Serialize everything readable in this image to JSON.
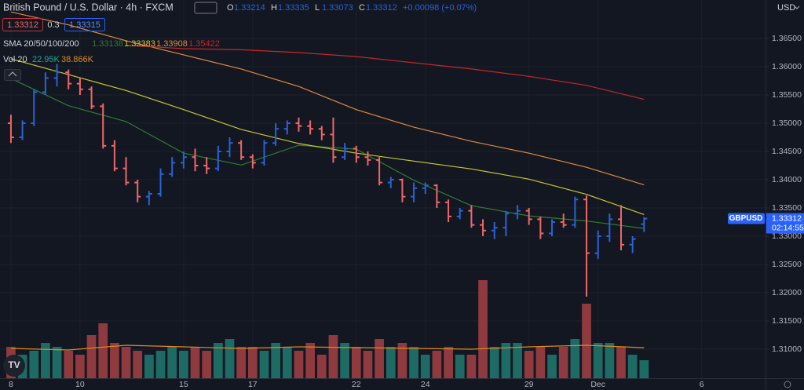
{
  "header": {
    "title": "British Pound / U.S. Dollar · 4h · FXCM",
    "sell": "1.33312",
    "spread": "0.3",
    "buy": "1.33315",
    "change": "+0.00098 (+0.07%)",
    "ohlc_letters": [
      "O",
      "H",
      "L",
      "C"
    ],
    "countdown": "02:14:55",
    "currency": "USD"
  },
  "chart_data": {
    "type": "ohlc",
    "symbol": "GBPUSD",
    "up_color": "#2a62d6",
    "down_color": "#f06767",
    "x": [
      0,
      1,
      2,
      3,
      4,
      5,
      6,
      7,
      8,
      9,
      10,
      11,
      12,
      13,
      14,
      15,
      16,
      17,
      18,
      19,
      20,
      21,
      22,
      23,
      24,
      25,
      26,
      27,
      28,
      29,
      30,
      31,
      32,
      33,
      34,
      35,
      36,
      37,
      38,
      39,
      40,
      41,
      42,
      43,
      44,
      45,
      46,
      47,
      48,
      49,
      50,
      51,
      52,
      53,
      54,
      55
    ],
    "open": [
      1.35,
      1.3475,
      1.35,
      1.3555,
      1.358,
      1.359,
      1.357,
      1.356,
      1.353,
      1.346,
      1.342,
      1.3395,
      1.337,
      1.3375,
      1.341,
      1.343,
      1.344,
      1.3425,
      1.342,
      1.345,
      1.3465,
      1.344,
      1.343,
      1.3465,
      1.349,
      1.35,
      1.3495,
      1.349,
      1.348,
      1.344,
      1.3455,
      1.344,
      1.3435,
      1.3395,
      1.34,
      1.337,
      1.3385,
      1.339,
      1.336,
      1.3335,
      1.3345,
      1.332,
      1.331,
      1.3315,
      1.334,
      1.3345,
      1.333,
      1.3305,
      1.3325,
      1.332,
      1.3365,
      1.327,
      1.33,
      1.333,
      1.3285,
      1.33214
    ],
    "high": [
      1.3515,
      1.3505,
      1.356,
      1.359,
      1.3605,
      1.3595,
      1.358,
      1.3565,
      1.3535,
      1.347,
      1.344,
      1.34,
      1.338,
      1.342,
      1.344,
      1.345,
      1.3455,
      1.344,
      1.346,
      1.3475,
      1.347,
      1.3445,
      1.347,
      1.35,
      1.3505,
      1.351,
      1.3505,
      1.3495,
      1.351,
      1.3465,
      1.346,
      1.345,
      1.344,
      1.3405,
      1.3402,
      1.3395,
      1.3395,
      1.3392,
      1.3365,
      1.335,
      1.3355,
      1.333,
      1.3325,
      1.3345,
      1.3355,
      1.335,
      1.3335,
      1.333,
      1.334,
      1.337,
      1.3372,
      1.331,
      1.334,
      1.3355,
      1.33,
      1.33335
    ],
    "low": [
      1.3465,
      1.347,
      1.3495,
      1.355,
      1.3565,
      1.356,
      1.355,
      1.3525,
      1.3455,
      1.3415,
      1.339,
      1.336,
      1.3355,
      1.337,
      1.3405,
      1.342,
      1.3415,
      1.341,
      1.3415,
      1.344,
      1.3435,
      1.342,
      1.3425,
      1.346,
      1.348,
      1.3485,
      1.348,
      1.347,
      1.343,
      1.3435,
      1.343,
      1.3425,
      1.339,
      1.3385,
      1.336,
      1.336,
      1.3375,
      1.335,
      1.3325,
      1.333,
      1.3315,
      1.33,
      1.3295,
      1.33,
      1.333,
      1.332,
      1.3295,
      1.33,
      1.3315,
      1.3315,
      1.3193,
      1.326,
      1.329,
      1.3275,
      1.327,
      1.33073
    ],
    "close": [
      1.3475,
      1.35,
      1.3555,
      1.358,
      1.359,
      1.357,
      1.356,
      1.353,
      1.346,
      1.342,
      1.3395,
      1.337,
      1.3375,
      1.341,
      1.343,
      1.344,
      1.3425,
      1.342,
      1.345,
      1.3465,
      1.344,
      1.343,
      1.3465,
      1.349,
      1.35,
      1.3495,
      1.349,
      1.348,
      1.344,
      1.3455,
      1.344,
      1.3435,
      1.3395,
      1.34,
      1.337,
      1.3385,
      1.339,
      1.336,
      1.3335,
      1.3345,
      1.332,
      1.331,
      1.3315,
      1.334,
      1.3345,
      1.333,
      1.3305,
      1.3325,
      1.332,
      1.3365,
      1.327,
      1.33,
      1.333,
      1.3285,
      1.3295,
      1.33312
    ],
    "xlim": [
      -0.95,
      65.55
    ],
    "xticks": [
      {
        "value": 0,
        "label": "8"
      },
      {
        "value": 6,
        "label": "10"
      },
      {
        "value": 15,
        "label": "15"
      },
      {
        "value": 21,
        "label": "17"
      },
      {
        "value": 30,
        "label": "22"
      },
      {
        "value": 36,
        "label": "24"
      },
      {
        "value": 45,
        "label": "29"
      },
      {
        "value": 51,
        "label": "Dec"
      },
      {
        "value": 60,
        "label": "6"
      }
    ],
    "ylim": [
      1.30486,
      1.37181
    ],
    "yticks": [
      {
        "value": 1.31,
        "label": "1.31000"
      },
      {
        "value": 1.315,
        "label": "1.31500"
      },
      {
        "value": 1.32,
        "label": "1.32000"
      },
      {
        "value": 1.325,
        "label": "1.32500"
      },
      {
        "value": 1.33,
        "label": "1.33000"
      },
      {
        "value": 1.335,
        "label": "1.33500"
      },
      {
        "value": 1.34,
        "label": "1.34000"
      },
      {
        "value": 1.345,
        "label": "1.34500"
      },
      {
        "value": 1.35,
        "label": "1.35000"
      },
      {
        "value": 1.355,
        "label": "1.35500"
      },
      {
        "value": 1.36,
        "label": "1.36000"
      },
      {
        "value": 1.365,
        "label": "1.36500"
      }
    ],
    "grid": true,
    "moving_averages": {
      "title": "SMA 20/50/100/200",
      "series": [
        {
          "name": "20",
          "color": "#2e7d32",
          "x": [
            0,
            5,
            10,
            15,
            20,
            25,
            30,
            35,
            40,
            45,
            50,
            55
          ],
          "values": [
            1.3579,
            1.3531,
            1.3503,
            1.3447,
            1.3426,
            1.3461,
            1.3454,
            1.3399,
            1.3354,
            1.3336,
            1.3327,
            1.33138
          ]
        },
        {
          "name": "50",
          "color": "#c9c82a",
          "x": [
            0,
            5,
            10,
            15,
            20,
            25,
            30,
            35,
            40,
            45,
            50,
            55
          ],
          "values": [
            1.3614,
            1.3586,
            1.3558,
            1.3524,
            1.3489,
            1.3464,
            1.3447,
            1.3433,
            1.3419,
            1.3401,
            1.3374,
            1.33383
          ]
        },
        {
          "name": "100",
          "color": "#e08a3c",
          "x": [
            0,
            5,
            10,
            15,
            20,
            25,
            30,
            35,
            40,
            45,
            50,
            55
          ],
          "values": [
            1.3697,
            1.3674,
            1.3646,
            1.3621,
            1.3596,
            1.3565,
            1.3524,
            1.3493,
            1.3468,
            1.3447,
            1.3422,
            1.33908
          ]
        },
        {
          "name": "200",
          "color": "#c62828",
          "x": [
            10,
            15,
            20,
            25,
            30,
            35,
            40,
            45,
            50,
            55
          ],
          "values": [
            1.3638,
            1.3632,
            1.363,
            1.3625,
            1.3618,
            1.3607,
            1.3596,
            1.3583,
            1.3567,
            1.35422
          ]
        }
      ]
    },
    "volume": {
      "title": "Vol 20",
      "up_color": "#1d6b64",
      "down_color": "#8e3a3e",
      "ylim": [
        0,
        130
      ],
      "values": [
        40,
        30,
        35,
        45,
        40,
        35,
        30,
        55,
        70,
        45,
        40,
        35,
        30,
        35,
        40,
        35,
        40,
        35,
        45,
        50,
        40,
        40,
        35,
        45,
        40,
        35,
        45,
        30,
        55,
        45,
        40,
        35,
        50,
        40,
        45,
        40,
        30,
        35,
        40,
        30,
        30,
        125,
        40,
        45,
        45,
        35,
        40,
        30,
        40,
        50,
        95,
        45,
        45,
        40,
        30,
        22.95
      ],
      "last_label": "22.95K",
      "ma": {
        "color": "#e08a1e",
        "x": [
          0,
          5,
          10,
          15,
          20,
          25,
          30,
          35,
          40,
          45,
          50,
          55
        ],
        "values": [
          38,
          36,
          42,
          40,
          38,
          40,
          39,
          38,
          37,
          40,
          42,
          38.866
        ],
        "last_label": "38.866K"
      }
    }
  }
}
